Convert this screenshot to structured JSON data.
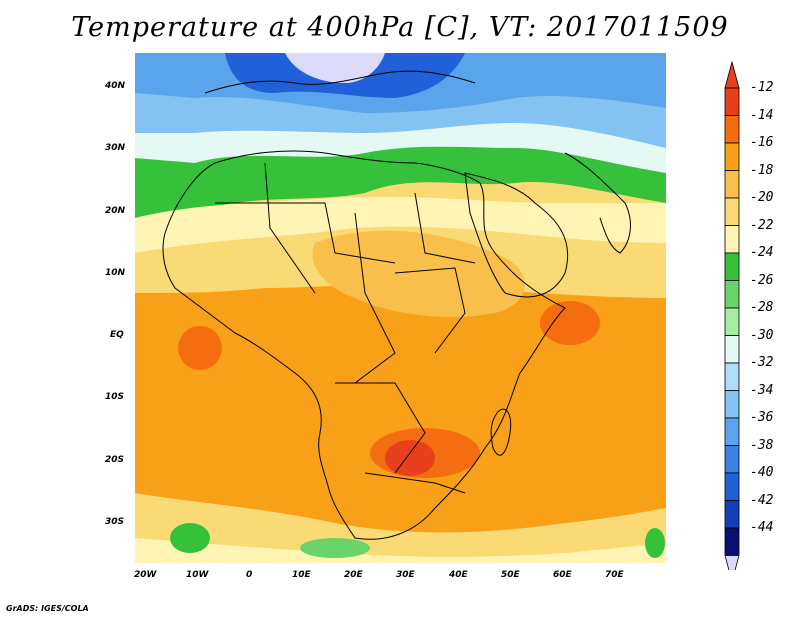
{
  "title": "Temperature at 400hPa [C], VT: 2017011509",
  "credit": "GrADS: IGES/COLA",
  "lat_labels": [
    "40N",
    "30N",
    "20N",
    "10N",
    "EQ",
    "10S",
    "20S",
    "30S"
  ],
  "lon_labels": [
    "20W",
    "10W",
    "0",
    "10E",
    "20E",
    "30E",
    "40E",
    "50E",
    "60E",
    "70E"
  ],
  "colorbar": {
    "labels": [
      "-12",
      "-14",
      "-16",
      "-18",
      "-20",
      "-22",
      "-24",
      "-26",
      "-28",
      "-30",
      "-32",
      "-34",
      "-36",
      "-38",
      "-40",
      "-42",
      "-44"
    ],
    "colors": [
      "#e8401c",
      "#f46e10",
      "#f8a018",
      "#f8c04a",
      "#fada75",
      "#fff4b4",
      "#36c13a",
      "#6ad46a",
      "#a4eca4",
      "#e4f8f4",
      "#b0dcf8",
      "#84c2f2",
      "#5aa4ec",
      "#3c82e4",
      "#2060d8",
      "#1240b8",
      "#0c1070"
    ],
    "top_arrow_color": "#e8401c",
    "bottom_arrow_color": "#dcdcfa"
  },
  "map": {
    "region": "Africa",
    "colors": {
      "ocean_warm": "#f8a018",
      "hot": "#f46e10",
      "hottest": "#e8401c",
      "warm": "#f8c04a",
      "mild": "#fada75",
      "cool": "#fff4b4",
      "green": "#36c13a",
      "cyan": "#b0dcf8",
      "blue": "#5aa4ec",
      "deep": "#2060d8",
      "purple": "#dcdcfa"
    }
  }
}
